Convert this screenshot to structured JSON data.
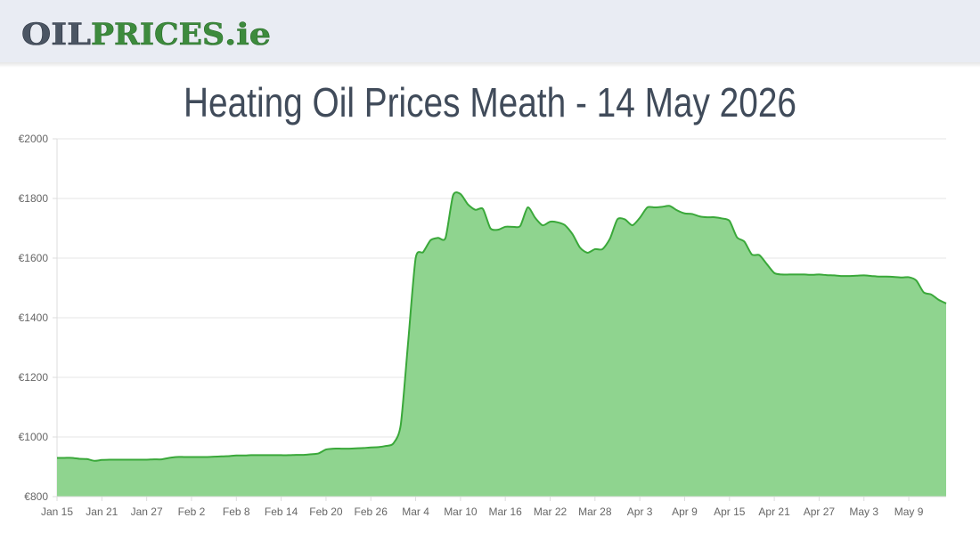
{
  "header": {
    "logo_main": "OIL",
    "logo_accent": "PRICES",
    "logo_suffix": ".ie"
  },
  "chart_data": {
    "type": "area",
    "title": "Heating Oil Prices Meath - 14 May 2026",
    "categories": [
      "Jan 15",
      null,
      null,
      null,
      null,
      null,
      "Jan 21",
      null,
      null,
      null,
      null,
      null,
      "Jan 27",
      null,
      null,
      null,
      null,
      null,
      "Feb 2",
      null,
      null,
      null,
      null,
      null,
      "Feb 8",
      null,
      null,
      null,
      null,
      null,
      "Feb 14",
      null,
      null,
      null,
      null,
      null,
      "Feb 20",
      null,
      null,
      null,
      null,
      null,
      "Feb 26",
      null,
      null,
      null,
      null,
      null,
      "Mar 4",
      null,
      null,
      null,
      null,
      null,
      "Mar 10",
      null,
      null,
      null,
      null,
      null,
      "Mar 16",
      null,
      null,
      null,
      null,
      null,
      "Mar 22",
      null,
      null,
      null,
      null,
      null,
      "Mar 28",
      null,
      null,
      null,
      null,
      null,
      "Apr 3",
      null,
      null,
      null,
      null,
      null,
      "Apr 9",
      null,
      null,
      null,
      null,
      null,
      "Apr 15",
      null,
      null,
      null,
      null,
      null,
      "Apr 21",
      null,
      null,
      null,
      null,
      null,
      "Apr 27",
      null,
      null,
      null,
      null,
      null,
      "May 3",
      null,
      null,
      null,
      null,
      null,
      "May 9",
      null,
      null,
      null,
      null,
      null
    ],
    "values": [
      930,
      930,
      930,
      927,
      926,
      920,
      923,
      924,
      924,
      924,
      924,
      924,
      924,
      925,
      925,
      930,
      933,
      933,
      933,
      933,
      933,
      934,
      935,
      936,
      938,
      938,
      939,
      939,
      939,
      939,
      939,
      939,
      940,
      940,
      942,
      945,
      958,
      961,
      961,
      961,
      962,
      963,
      965,
      966,
      970,
      978,
      1040,
      1320,
      1600,
      1620,
      1660,
      1668,
      1668,
      1810,
      1815,
      1780,
      1762,
      1765,
      1700,
      1695,
      1705,
      1705,
      1708,
      1770,
      1735,
      1710,
      1722,
      1720,
      1710,
      1680,
      1635,
      1618,
      1630,
      1630,
      1665,
      1730,
      1730,
      1710,
      1735,
      1770,
      1770,
      1772,
      1775,
      1760,
      1750,
      1748,
      1740,
      1737,
      1737,
      1733,
      1725,
      1670,
      1655,
      1612,
      1610,
      1580,
      1550,
      1545,
      1545,
      1545,
      1545,
      1544,
      1545,
      1543,
      1542,
      1540,
      1540,
      1541,
      1542,
      1540,
      1538,
      1538,
      1537,
      1535,
      1536,
      1525,
      1485,
      1478,
      1460,
      1448
    ],
    "color": "#3aa83a",
    "fill_color": "#8fd48f",
    "ylim": [
      800,
      2000
    ],
    "yticks": [
      {
        "value": 800,
        "label": "€800"
      },
      {
        "value": 1000,
        "label": "€1000"
      },
      {
        "value": 1200,
        "label": "€1200"
      },
      {
        "value": 1400,
        "label": "€1400"
      },
      {
        "value": 1600,
        "label": "€1600"
      },
      {
        "value": 1800,
        "label": "€1800"
      },
      {
        "value": 2000,
        "label": "€2000"
      }
    ],
    "grid": true
  }
}
